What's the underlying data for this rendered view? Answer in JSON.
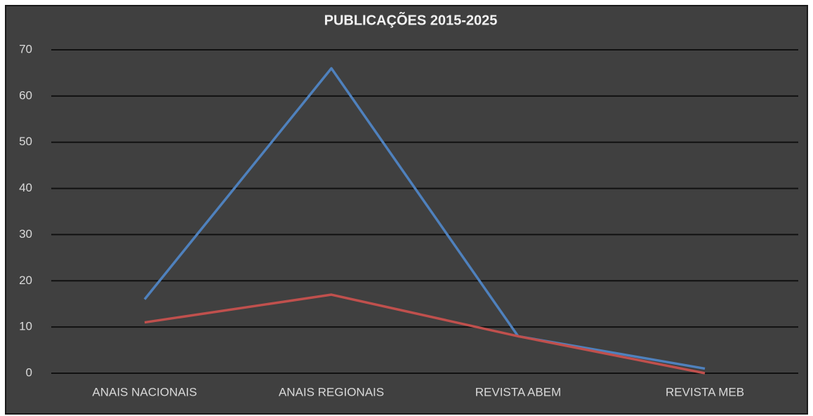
{
  "chart_data": {
    "type": "line",
    "title": "PUBLICAÇÕES 2015-2025",
    "categories": [
      "ANAIS NACIONAIS",
      "ANAIS REGIONAIS",
      "REVISTA ABEM",
      "REVISTA MEB"
    ],
    "series": [
      {
        "color": "#4f81bd",
        "values": [
          16,
          66,
          8,
          1
        ]
      },
      {
        "color": "#c0504d",
        "values": [
          11,
          17,
          8,
          0
        ]
      }
    ],
    "ylim": [
      0,
      70
    ],
    "yticks": [
      0,
      10,
      20,
      30,
      40,
      50,
      60,
      70
    ],
    "grid": true
  }
}
